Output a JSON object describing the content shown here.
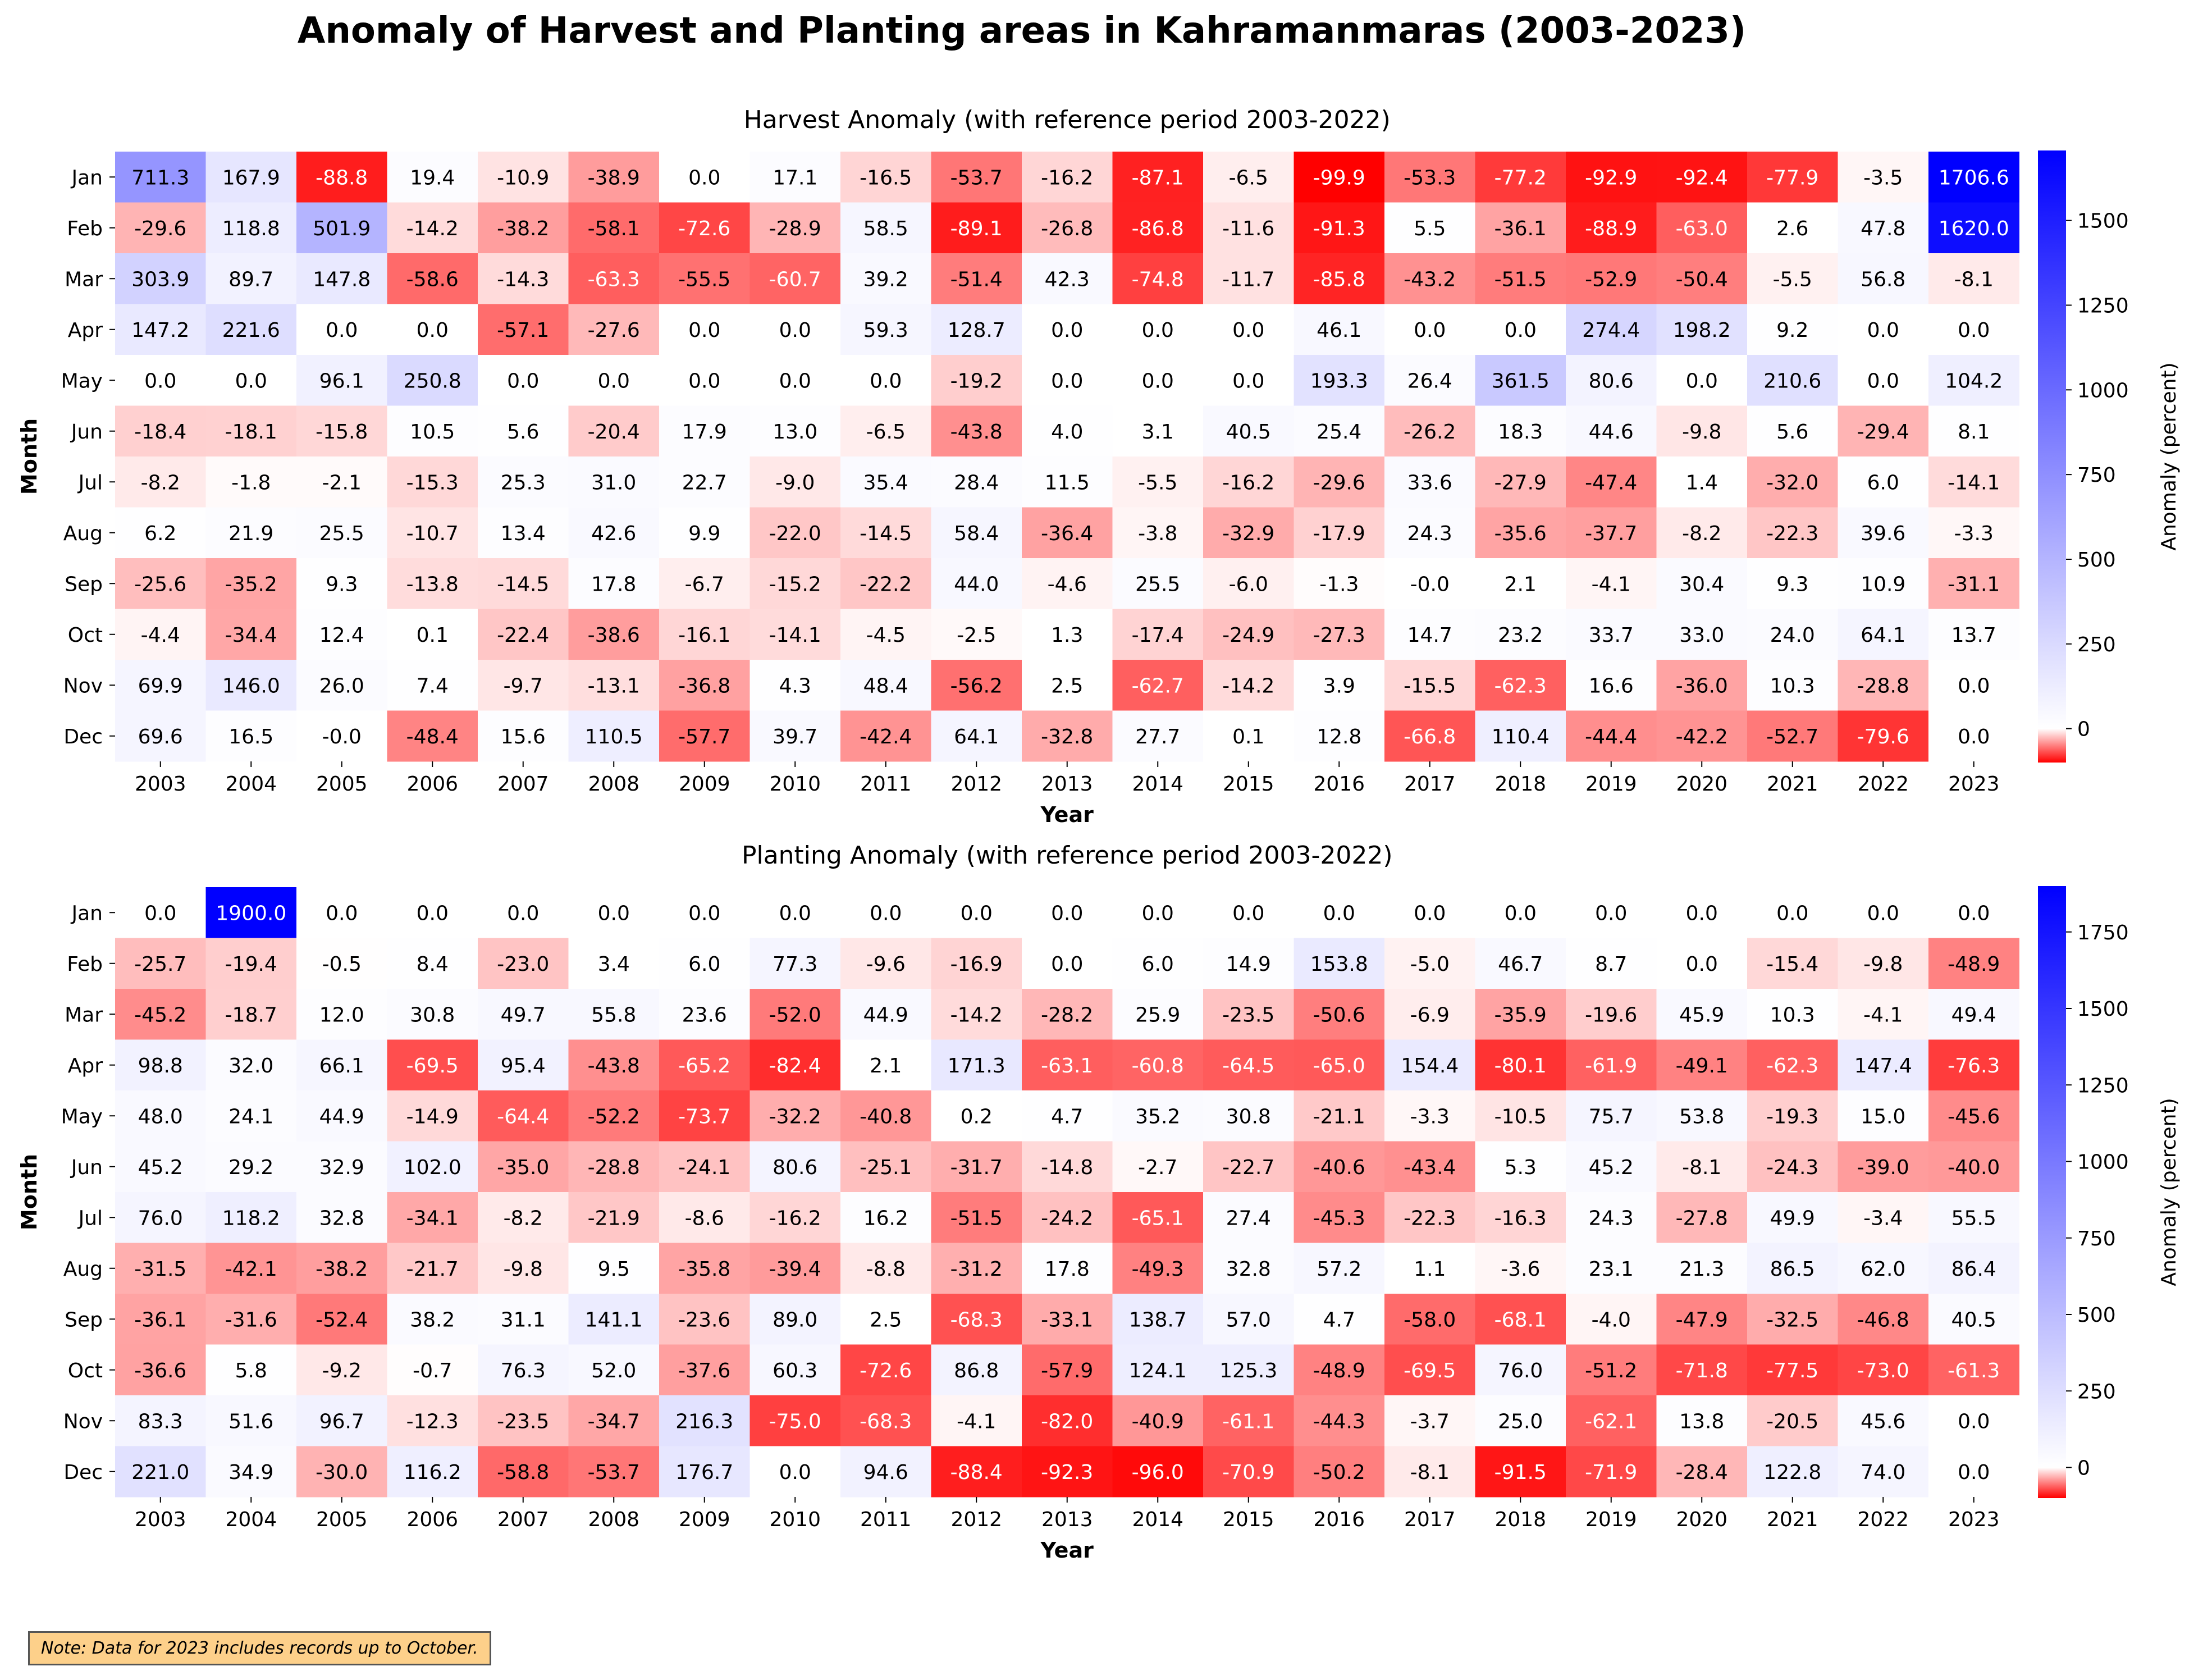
{
  "title": "Anomaly of Harvest and Planting areas in Kahramanmaras (2003-2023)",
  "note": "Note: Data for 2023 includes records up to October.",
  "colors": {
    "positive": "#0000ff",
    "negative": "#ff0000",
    "neutral": "#ffffff"
  },
  "chart_data": [
    {
      "type": "heatmap",
      "title": "Harvest Anomaly (with reference period 2003-2022)",
      "xlabel": "Year",
      "ylabel": "Month",
      "colorbar_label": "Anomaly (percent)",
      "colorbar_ticks": [
        0,
        250,
        500,
        750,
        1000,
        1250,
        1500
      ],
      "vmin": -100,
      "vmax": 1706.6,
      "x": [
        "2003",
        "2004",
        "2005",
        "2006",
        "2007",
        "2008",
        "2009",
        "2010",
        "2011",
        "2012",
        "2013",
        "2014",
        "2015",
        "2016",
        "2017",
        "2018",
        "2019",
        "2020",
        "2021",
        "2022",
        "2023"
      ],
      "y": [
        "Jan",
        "Feb",
        "Mar",
        "Apr",
        "May",
        "Jun",
        "Jul",
        "Aug",
        "Sep",
        "Oct",
        "Nov",
        "Dec"
      ],
      "values": [
        [
          "711.3",
          "167.9",
          "-88.8",
          "19.4",
          "-10.9",
          "-38.9",
          "0.0",
          "17.1",
          "-16.5",
          "-53.7",
          "-16.2",
          "-87.1",
          "-6.5",
          "-99.9",
          "-53.3",
          "-77.2",
          "-92.9",
          "-92.4",
          "-77.9",
          "-3.5",
          "1706.6"
        ],
        [
          "-29.6",
          "118.8",
          "501.9",
          "-14.2",
          "-38.2",
          "-58.1",
          "-72.6",
          "-28.9",
          "58.5",
          "-89.1",
          "-26.8",
          "-86.8",
          "-11.6",
          "-91.3",
          "5.5",
          "-36.1",
          "-88.9",
          "-63.0",
          "2.6",
          "47.8",
          "1620.0"
        ],
        [
          "303.9",
          "89.7",
          "147.8",
          "-58.6",
          "-14.3",
          "-63.3",
          "-55.5",
          "-60.7",
          "39.2",
          "-51.4",
          "42.3",
          "-74.8",
          "-11.7",
          "-85.8",
          "-43.2",
          "-51.5",
          "-52.9",
          "-50.4",
          "-5.5",
          "56.8",
          "-8.1"
        ],
        [
          "147.2",
          "221.6",
          "0.0",
          "0.0",
          "-57.1",
          "-27.6",
          "0.0",
          "0.0",
          "59.3",
          "128.7",
          "0.0",
          "0.0",
          "0.0",
          "46.1",
          "0.0",
          "0.0",
          "274.4",
          "198.2",
          "9.2",
          "0.0",
          "0.0"
        ],
        [
          "0.0",
          "0.0",
          "96.1",
          "250.8",
          "0.0",
          "0.0",
          "0.0",
          "0.0",
          "0.0",
          "-19.2",
          "0.0",
          "0.0",
          "0.0",
          "193.3",
          "26.4",
          "361.5",
          "80.6",
          "0.0",
          "210.6",
          "0.0",
          "104.2"
        ],
        [
          "-18.4",
          "-18.1",
          "-15.8",
          "10.5",
          "5.6",
          "-20.4",
          "17.9",
          "13.0",
          "-6.5",
          "-43.8",
          "4.0",
          "3.1",
          "40.5",
          "25.4",
          "-26.2",
          "18.3",
          "44.6",
          "-9.8",
          "5.6",
          "-29.4",
          "8.1"
        ],
        [
          "-8.2",
          "-1.8",
          "-2.1",
          "-15.3",
          "25.3",
          "31.0",
          "22.7",
          "-9.0",
          "35.4",
          "28.4",
          "11.5",
          "-5.5",
          "-16.2",
          "-29.6",
          "33.6",
          "-27.9",
          "-47.4",
          "1.4",
          "-32.0",
          "6.0",
          "-14.1"
        ],
        [
          "6.2",
          "21.9",
          "25.5",
          "-10.7",
          "13.4",
          "42.6",
          "9.9",
          "-22.0",
          "-14.5",
          "58.4",
          "-36.4",
          "-3.8",
          "-32.9",
          "-17.9",
          "24.3",
          "-35.6",
          "-37.7",
          "-8.2",
          "-22.3",
          "39.6",
          "-3.3"
        ],
        [
          "-25.6",
          "-35.2",
          "9.3",
          "-13.8",
          "-14.5",
          "17.8",
          "-6.7",
          "-15.2",
          "-22.2",
          "44.0",
          "-4.6",
          "25.5",
          "-6.0",
          "-1.3",
          "-0.0",
          "2.1",
          "-4.1",
          "30.4",
          "9.3",
          "10.9",
          "-31.1"
        ],
        [
          "-4.4",
          "-34.4",
          "12.4",
          "0.1",
          "-22.4",
          "-38.6",
          "-16.1",
          "-14.1",
          "-4.5",
          "-2.5",
          "1.3",
          "-17.4",
          "-24.9",
          "-27.3",
          "14.7",
          "23.2",
          "33.7",
          "33.0",
          "24.0",
          "64.1",
          "13.7"
        ],
        [
          "69.9",
          "146.0",
          "26.0",
          "7.4",
          "-9.7",
          "-13.1",
          "-36.8",
          "4.3",
          "48.4",
          "-56.2",
          "2.5",
          "-62.7",
          "-14.2",
          "3.9",
          "-15.5",
          "-62.3",
          "16.6",
          "-36.0",
          "10.3",
          "-28.8",
          "0.0"
        ],
        [
          "69.6",
          "16.5",
          "-0.0",
          "-48.4",
          "15.6",
          "110.5",
          "-57.7",
          "39.7",
          "-42.4",
          "64.1",
          "-32.8",
          "27.7",
          "0.1",
          "12.8",
          "-66.8",
          "110.4",
          "-44.4",
          "-42.2",
          "-52.7",
          "-79.6",
          "0.0"
        ]
      ]
    },
    {
      "type": "heatmap",
      "title": "Planting Anomaly (with reference period 2003-2022)",
      "xlabel": "Year",
      "ylabel": "Month",
      "colorbar_label": "Anomaly (percent)",
      "colorbar_ticks": [
        0,
        250,
        500,
        750,
        1000,
        1250,
        1500,
        1750
      ],
      "vmin": -100,
      "vmax": 1900.0,
      "x": [
        "2003",
        "2004",
        "2005",
        "2006",
        "2007",
        "2008",
        "2009",
        "2010",
        "2011",
        "2012",
        "2013",
        "2014",
        "2015",
        "2016",
        "2017",
        "2018",
        "2019",
        "2020",
        "2021",
        "2022",
        "2023"
      ],
      "y": [
        "Jan",
        "Feb",
        "Mar",
        "Apr",
        "May",
        "Jun",
        "Jul",
        "Aug",
        "Sep",
        "Oct",
        "Nov",
        "Dec"
      ],
      "values": [
        [
          "0.0",
          "1900.0",
          "0.0",
          "0.0",
          "0.0",
          "0.0",
          "0.0",
          "0.0",
          "0.0",
          "0.0",
          "0.0",
          "0.0",
          "0.0",
          "0.0",
          "0.0",
          "0.0",
          "0.0",
          "0.0",
          "0.0",
          "0.0",
          "0.0"
        ],
        [
          "-25.7",
          "-19.4",
          "-0.5",
          "8.4",
          "-23.0",
          "3.4",
          "6.0",
          "77.3",
          "-9.6",
          "-16.9",
          "0.0",
          "6.0",
          "14.9",
          "153.8",
          "-5.0",
          "46.7",
          "8.7",
          "0.0",
          "-15.4",
          "-9.8",
          "-48.9"
        ],
        [
          "-45.2",
          "-18.7",
          "12.0",
          "30.8",
          "49.7",
          "55.8",
          "23.6",
          "-52.0",
          "44.9",
          "-14.2",
          "-28.2",
          "25.9",
          "-23.5",
          "-50.6",
          "-6.9",
          "-35.9",
          "-19.6",
          "45.9",
          "10.3",
          "-4.1",
          "49.4"
        ],
        [
          "98.8",
          "32.0",
          "66.1",
          "-69.5",
          "95.4",
          "-43.8",
          "-65.2",
          "-82.4",
          "2.1",
          "171.3",
          "-63.1",
          "-60.8",
          "-64.5",
          "-65.0",
          "154.4",
          "-80.1",
          "-61.9",
          "-49.1",
          "-62.3",
          "147.4",
          "-76.3"
        ],
        [
          "48.0",
          "24.1",
          "44.9",
          "-14.9",
          "-64.4",
          "-52.2",
          "-73.7",
          "-32.2",
          "-40.8",
          "0.2",
          "4.7",
          "35.2",
          "30.8",
          "-21.1",
          "-3.3",
          "-10.5",
          "75.7",
          "53.8",
          "-19.3",
          "15.0",
          "-45.6"
        ],
        [
          "45.2",
          "29.2",
          "32.9",
          "102.0",
          "-35.0",
          "-28.8",
          "-24.1",
          "80.6",
          "-25.1",
          "-31.7",
          "-14.8",
          "-2.7",
          "-22.7",
          "-40.6",
          "-43.4",
          "5.3",
          "45.2",
          "-8.1",
          "-24.3",
          "-39.0",
          "-40.0"
        ],
        [
          "76.0",
          "118.2",
          "32.8",
          "-34.1",
          "-8.2",
          "-21.9",
          "-8.6",
          "-16.2",
          "16.2",
          "-51.5",
          "-24.2",
          "-65.1",
          "27.4",
          "-45.3",
          "-22.3",
          "-16.3",
          "24.3",
          "-27.8",
          "49.9",
          "-3.4",
          "55.5"
        ],
        [
          "-31.5",
          "-42.1",
          "-38.2",
          "-21.7",
          "-9.8",
          "9.5",
          "-35.8",
          "-39.4",
          "-8.8",
          "-31.2",
          "17.8",
          "-49.3",
          "32.8",
          "57.2",
          "1.1",
          "-3.6",
          "23.1",
          "21.3",
          "86.5",
          "62.0",
          "86.4"
        ],
        [
          "-36.1",
          "-31.6",
          "-52.4",
          "38.2",
          "31.1",
          "141.1",
          "-23.6",
          "89.0",
          "2.5",
          "-68.3",
          "-33.1",
          "138.7",
          "57.0",
          "4.7",
          "-58.0",
          "-68.1",
          "-4.0",
          "-47.9",
          "-32.5",
          "-46.8",
          "40.5"
        ],
        [
          "-36.6",
          "5.8",
          "-9.2",
          "-0.7",
          "76.3",
          "52.0",
          "-37.6",
          "60.3",
          "-72.6",
          "86.8",
          "-57.9",
          "124.1",
          "125.3",
          "-48.9",
          "-69.5",
          "76.0",
          "-51.2",
          "-71.8",
          "-77.5",
          "-73.0",
          "-61.3"
        ],
        [
          "83.3",
          "51.6",
          "96.7",
          "-12.3",
          "-23.5",
          "-34.7",
          "216.3",
          "-75.0",
          "-68.3",
          "-4.1",
          "-82.0",
          "-40.9",
          "-61.1",
          "-44.3",
          "-3.7",
          "25.0",
          "-62.1",
          "13.8",
          "-20.5",
          "45.6",
          "0.0"
        ],
        [
          "221.0",
          "34.9",
          "-30.0",
          "116.2",
          "-58.8",
          "-53.7",
          "176.7",
          "0.0",
          "94.6",
          "-88.4",
          "-92.3",
          "-96.0",
          "-70.9",
          "-50.2",
          "-8.1",
          "-91.5",
          "-71.9",
          "-28.4",
          "122.8",
          "74.0",
          "0.0"
        ]
      ]
    }
  ]
}
